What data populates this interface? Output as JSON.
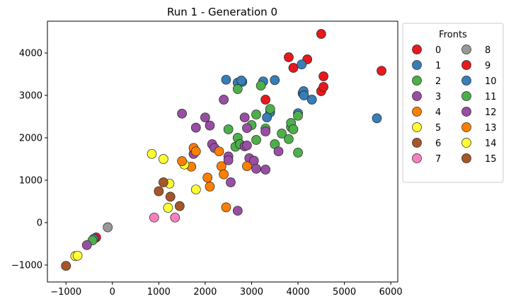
{
  "chart_data": {
    "type": "scatter",
    "title": "Run 1 - Generation 0",
    "xlabel": "",
    "ylabel": "",
    "xlim": [
      -1400,
      6150
    ],
    "ylim": [
      -1400,
      4750
    ],
    "xticks": [
      -1000,
      0,
      1000,
      2000,
      3000,
      4000,
      5000,
      6000
    ],
    "yticks": [
      -1000,
      0,
      1000,
      2000,
      3000,
      4000
    ],
    "grid": false,
    "legend": {
      "title": "Fronts",
      "placement": "outside right",
      "columns": 2
    },
    "series": [
      {
        "name": "0",
        "color": "#e41a1c",
        "points": [
          [
            -350,
            -350
          ],
          [
            3300,
            2900
          ],
          [
            3800,
            3900
          ],
          [
            3900,
            3650
          ],
          [
            4200,
            3850
          ],
          [
            4500,
            3100
          ],
          [
            4550,
            3200
          ],
          [
            4550,
            3450
          ],
          [
            4500,
            4450
          ],
          [
            5800,
            3580
          ]
        ]
      },
      {
        "name": "1",
        "color": "#377eb8",
        "points": [
          [
            -400,
            -380
          ],
          [
            2450,
            3370
          ],
          [
            2700,
            3300
          ],
          [
            2800,
            3320
          ],
          [
            2780,
            3350
          ],
          [
            3250,
            3330
          ],
          [
            3500,
            3360
          ],
          [
            3400,
            2600
          ],
          [
            3330,
            2480
          ],
          [
            4000,
            2580
          ],
          [
            4100,
            3050
          ],
          [
            4120,
            3100
          ],
          [
            4130,
            3000
          ],
          [
            4080,
            3730
          ],
          [
            4300,
            2900
          ],
          [
            5700,
            2460
          ]
        ]
      },
      {
        "name": "2",
        "color": "#4daf4a",
        "points": [
          [
            -430,
            -420
          ],
          [
            2500,
            2200
          ],
          [
            2650,
            1790
          ],
          [
            2700,
            2000
          ],
          [
            2750,
            1850
          ],
          [
            2700,
            3150
          ],
          [
            3000,
            2300
          ],
          [
            3100,
            1950
          ],
          [
            3100,
            2550
          ],
          [
            3200,
            3230
          ],
          [
            3300,
            2220
          ],
          [
            3400,
            2680
          ],
          [
            3500,
            1850
          ],
          [
            3650,
            2100
          ],
          [
            3800,
            1970
          ],
          [
            3850,
            2250
          ],
          [
            3850,
            2350
          ],
          [
            3900,
            2200
          ],
          [
            4000,
            2520
          ],
          [
            4000,
            1650
          ]
        ]
      },
      {
        "name": "3",
        "color": "#984ea3",
        "points": [
          [
            -550,
            -530
          ],
          [
            1500,
            2570
          ],
          [
            1750,
            1620
          ],
          [
            1800,
            2240
          ],
          [
            2000,
            2480
          ],
          [
            2100,
            2290
          ],
          [
            2150,
            1850
          ],
          [
            2200,
            1760
          ],
          [
            2400,
            2900
          ],
          [
            2500,
            1560
          ],
          [
            2500,
            1470
          ],
          [
            2550,
            950
          ],
          [
            2700,
            280
          ],
          [
            2850,
            2480
          ],
          [
            2850,
            1800
          ],
          [
            2900,
            2230
          ],
          [
            2900,
            1820
          ],
          [
            2950,
            1520
          ],
          [
            3050,
            1460
          ],
          [
            3100,
            1270
          ],
          [
            3300,
            1250
          ],
          [
            3300,
            2150
          ],
          [
            3580,
            1680
          ]
        ]
      },
      {
        "name": "4",
        "color": "#ff7f00",
        "points": [
          [
            1700,
            1320
          ],
          [
            1750,
            1760
          ],
          [
            1800,
            1680
          ],
          [
            2050,
            1060
          ],
          [
            2100,
            850
          ],
          [
            2300,
            1680
          ],
          [
            2350,
            1330
          ],
          [
            2400,
            1140
          ],
          [
            2450,
            360
          ],
          [
            2900,
            1330
          ]
        ]
      },
      {
        "name": "5",
        "color": "#ffff33",
        "points": [
          [
            850,
            1620
          ],
          [
            1100,
            1500
          ],
          [
            1200,
            350
          ],
          [
            1230,
            920
          ],
          [
            1550,
            1370
          ],
          [
            1800,
            780
          ]
        ]
      },
      {
        "name": "6",
        "color": "#a65628",
        "points": [
          [
            1000,
            740
          ],
          [
            1100,
            950
          ],
          [
            1250,
            610
          ],
          [
            1450,
            390
          ]
        ]
      },
      {
        "name": "7",
        "color": "#f781bf",
        "points": [
          [
            900,
            120
          ],
          [
            1350,
            120
          ]
        ]
      },
      {
        "name": "8",
        "color": "#999999",
        "points": [
          [
            -100,
            -110
          ]
        ]
      },
      {
        "name": "9",
        "color": "#e41a1c",
        "points": []
      },
      {
        "name": "10",
        "color": "#377eb8",
        "points": []
      },
      {
        "name": "11",
        "color": "#4daf4a",
        "points": []
      },
      {
        "name": "12",
        "color": "#984ea3",
        "points": []
      },
      {
        "name": "13",
        "color": "#ff7f00",
        "points": [
          [
            1500,
            1450
          ]
        ]
      },
      {
        "name": "14",
        "color": "#ffff33",
        "points": [
          [
            -800,
            -790
          ],
          [
            -750,
            -780
          ]
        ]
      },
      {
        "name": "15",
        "color": "#a65628",
        "points": [
          [
            -1000,
            -1020
          ]
        ]
      }
    ]
  }
}
